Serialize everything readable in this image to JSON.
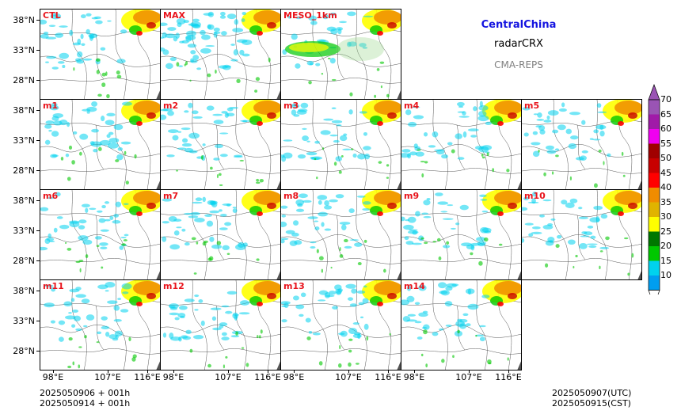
{
  "header": {
    "region": "CentralChina",
    "variable": "radarCRX",
    "system": "CMA-REPS"
  },
  "panels": [
    {
      "label": "CTL"
    },
    {
      "label": "MAX"
    },
    {
      "label": "MESO_1km"
    },
    {
      "label": "m1"
    },
    {
      "label": "m2"
    },
    {
      "label": "m3"
    },
    {
      "label": "m4"
    },
    {
      "label": "m5"
    },
    {
      "label": "m6"
    },
    {
      "label": "m7"
    },
    {
      "label": "m8"
    },
    {
      "label": "m9"
    },
    {
      "label": "m10"
    },
    {
      "label": "m11"
    },
    {
      "label": "m12"
    },
    {
      "label": "m13"
    },
    {
      "label": "m14"
    }
  ],
  "axes": {
    "lat_labels": [
      "38°N",
      "33°N",
      "28°N"
    ],
    "lon_labels": [
      "98°E",
      "107°E",
      "116°E"
    ]
  },
  "colorbar": {
    "labels": [
      "70",
      "65",
      "60",
      "55",
      "50",
      "45",
      "40",
      "35",
      "30",
      "25",
      "20",
      "15",
      "10"
    ],
    "colors": [
      "#9a54b4",
      "#a01aa8",
      "#f000f0",
      "#a00000",
      "#c80000",
      "#ff0000",
      "#f08c00",
      "#e0b400",
      "#ffff00",
      "#007800",
      "#00c800",
      "#00d2ee",
      "#009ef0"
    ]
  },
  "footer": {
    "init_utc_line": "2025050906  +  001h",
    "init_cst_line": "2025050914  +  001h",
    "valid_utc": "2025050907(UTC)",
    "valid_cst": "2025050915(CST)"
  }
}
